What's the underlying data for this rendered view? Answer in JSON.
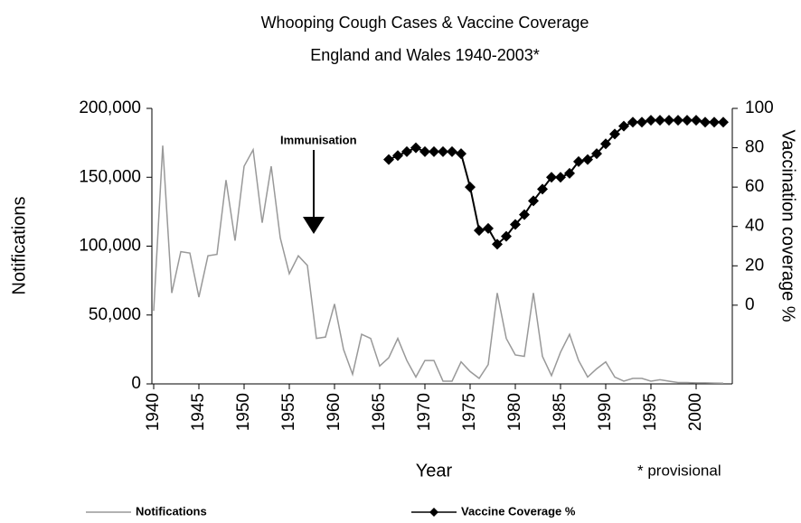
{
  "chart_data": {
    "type": "line",
    "title": "Whooping Cough Cases & Vaccine Coverage",
    "subtitle": "England and Wales 1940-2003*",
    "x_label": "Year",
    "y_label": "Notifications",
    "y2_label": "Vaccination coverage %",
    "annotations": [
      "Immunisation",
      "* provisional"
    ],
    "x": [
      1940,
      1941,
      1942,
      1943,
      1944,
      1945,
      1946,
      1947,
      1948,
      1949,
      1950,
      1951,
      1952,
      1953,
      1954,
      1955,
      1956,
      1957,
      1958,
      1959,
      1960,
      1961,
      1962,
      1963,
      1964,
      1965,
      1966,
      1967,
      1968,
      1969,
      1970,
      1971,
      1972,
      1973,
      1974,
      1975,
      1976,
      1977,
      1978,
      1979,
      1980,
      1981,
      1982,
      1983,
      1984,
      1985,
      1986,
      1987,
      1988,
      1989,
      1990,
      1991,
      1992,
      1993,
      1994,
      1995,
      1996,
      1997,
      1998,
      1999,
      2000,
      2001,
      2002,
      2003
    ],
    "series": [
      {
        "name": "Notifications",
        "color": "#999999",
        "values": [
          53000,
          173000,
          66000,
          96000,
          95000,
          63000,
          93000,
          94000,
          148000,
          104000,
          158000,
          170000,
          117000,
          158000,
          106000,
          80000,
          93000,
          86000,
          33000,
          34000,
          58000,
          25000,
          7000,
          36000,
          33000,
          13000,
          19000,
          33000,
          17000,
          5000,
          17000,
          17000,
          2000,
          2000,
          16000,
          9000,
          4000,
          14000,
          66000,
          33000,
          21000,
          20000,
          66000,
          20000,
          6000,
          23000,
          36000,
          17000,
          5000,
          11000,
          16000,
          5000,
          2000,
          4000,
          4000,
          2000,
          3000,
          2000,
          1000,
          1000,
          700,
          700,
          600,
          500
        ]
      },
      {
        "name": "Vaccine Coverage %",
        "color": "#000000",
        "axis": "y2",
        "marker": "diamond",
        "values": [
          null,
          null,
          null,
          null,
          null,
          null,
          null,
          null,
          null,
          null,
          null,
          null,
          null,
          null,
          null,
          null,
          null,
          null,
          null,
          null,
          null,
          null,
          null,
          null,
          null,
          null,
          74,
          76,
          78,
          80,
          78,
          78,
          78,
          78,
          77,
          60,
          38,
          39,
          31,
          35,
          41,
          46,
          53,
          59,
          65,
          65,
          67,
          73,
          74,
          77,
          82,
          87,
          91,
          93,
          93,
          94,
          94,
          94,
          94,
          94,
          94,
          93,
          93,
          93
        ]
      }
    ],
    "xlim": [
      1940,
      2004
    ],
    "xticks": [
      1940,
      1945,
      1950,
      1955,
      1960,
      1965,
      1970,
      1975,
      1980,
      1985,
      1990,
      1995,
      2000
    ],
    "ylim": [
      0,
      200000
    ],
    "yticks": [
      0,
      {
        "value": 50000,
        "label": "50,000"
      },
      {
        "value": 100000,
        "label": "100,000"
      },
      {
        "value": 150000,
        "label": "150,000"
      },
      {
        "value": 200000,
        "label": "200,000"
      }
    ],
    "y2lim": [
      -40,
      100
    ],
    "y2ticks": [
      0,
      20,
      40,
      60,
      80,
      100
    ],
    "grid": false,
    "legend": "bottom"
  }
}
